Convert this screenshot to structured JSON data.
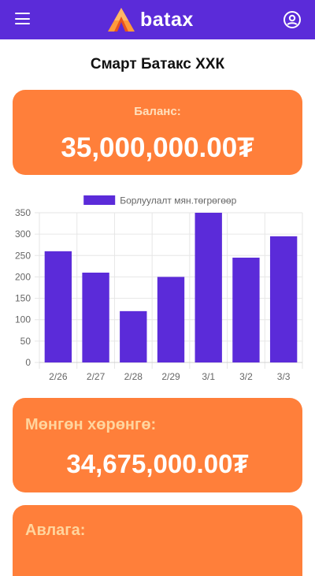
{
  "header": {
    "app_name": "batax",
    "menu_icon": "hamburger-menu-icon",
    "account_icon": "account-circle-icon",
    "brand_color": "#5b2bd9",
    "logo_colors": [
      "#ff9a3c",
      "#e8541e"
    ]
  },
  "company": {
    "name": "Смарт Батакс ХХК"
  },
  "balance": {
    "label": "Баланс:",
    "amount": "35,000,000.00₮"
  },
  "chart_data": {
    "type": "bar",
    "categories": [
      "2/26",
      "2/27",
      "2/28",
      "2/29",
      "3/1",
      "3/2",
      "3/3"
    ],
    "series": [
      {
        "name": "Борлуулалт мян.төгрөгөөр",
        "values": [
          260,
          210,
          120,
          200,
          350,
          245,
          295
        ],
        "color": "#5b2bd9"
      }
    ],
    "ylim": [
      0,
      350
    ],
    "yticks": [
      0,
      50,
      100,
      150,
      200,
      250,
      300,
      350
    ],
    "grid": true,
    "legend": "top-center"
  },
  "cash_assets": {
    "label": "Мөнгөн хөрөнгө:",
    "amount": "34,675,000.00₮"
  },
  "receivables": {
    "label": "Авлага:"
  },
  "colors": {
    "card": "#ff7f3a",
    "card_label": "#ffd59e",
    "bar": "#5b2bd9"
  }
}
